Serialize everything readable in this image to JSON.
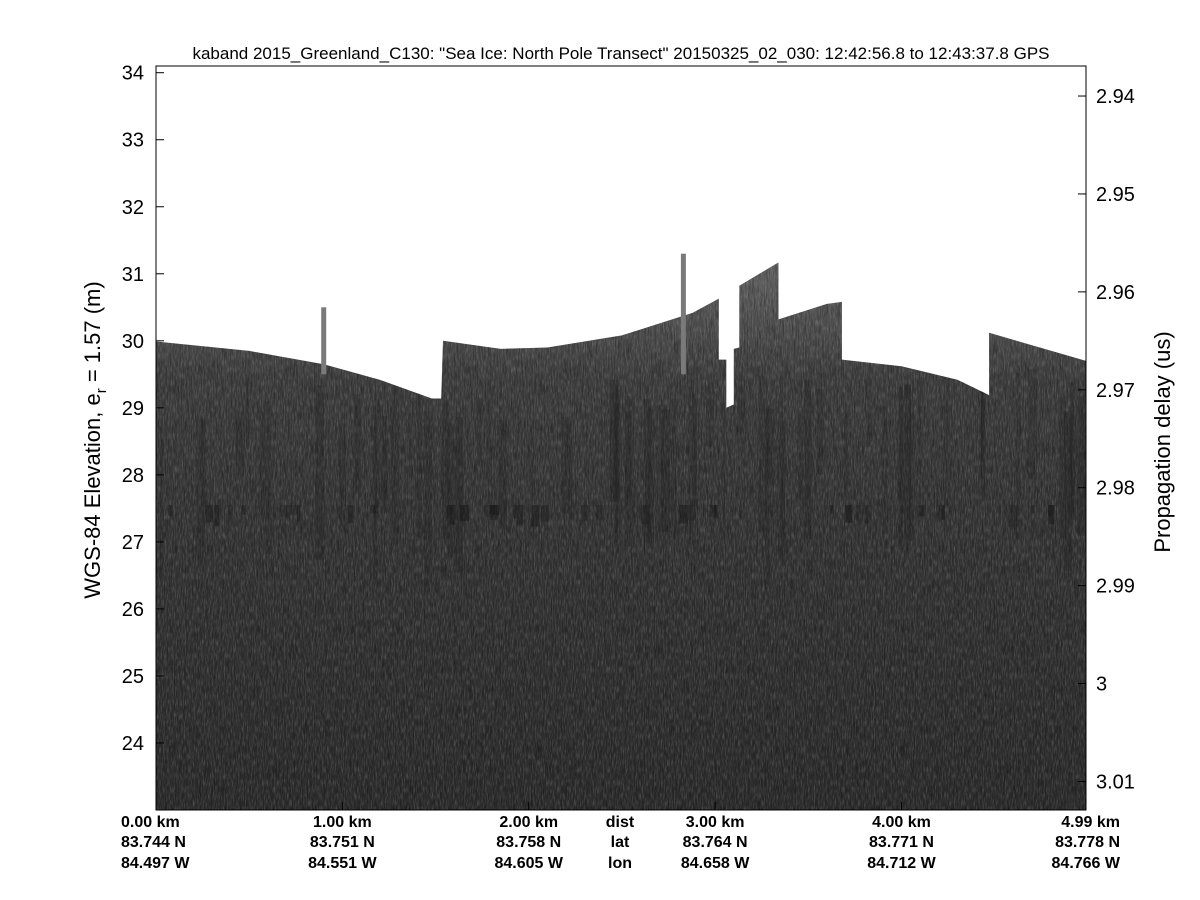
{
  "chart_data": {
    "type": "heatmap",
    "title": "kaband 2015_Greenland_C130: \"Sea Ice: North Pole Transect\"  20150325_02_030: 12:42:56.8 to 12:43:37.8 GPS",
    "ylabel": "WGS-84 Elevation, e_r = 1.57 (m)",
    "ylabel_main": "WGS-84 Elevation, e",
    "ylabel_sub": "r",
    "ylabel_tail": " = 1.57 (m)",
    "y2label": "Propagation delay (us)",
    "ylim": [
      23.0,
      34.1
    ],
    "yticks": [
      "24",
      "25",
      "26",
      "27",
      "28",
      "29",
      "30",
      "31",
      "32",
      "33",
      "34"
    ],
    "y2ticks": [
      {
        "value": 2.94,
        "label": "2.94"
      },
      {
        "value": 2.95,
        "label": "2.95"
      },
      {
        "value": 2.96,
        "label": "2.96"
      },
      {
        "value": 2.97,
        "label": "2.97"
      },
      {
        "value": 2.98,
        "label": "2.98"
      },
      {
        "value": 2.99,
        "label": "2.99"
      },
      {
        "value": 3.0,
        "label": "3"
      },
      {
        "value": 3.01,
        "label": "3.01"
      }
    ],
    "xlim_km": [
      0.0,
      4.99
    ],
    "row_labels": [
      "dist",
      "lat",
      "lon"
    ],
    "xticks": [
      {
        "km": 0.0,
        "dist": "0.00 km",
        "lat": "83.744 N",
        "lon": "84.497 W"
      },
      {
        "km": 1.0,
        "dist": "1.00 km",
        "lat": "83.751 N",
        "lon": "84.551 W"
      },
      {
        "km": 2.0,
        "dist": "2.00 km",
        "lat": "83.758 N",
        "lon": "84.605 W"
      },
      {
        "km": 3.0,
        "dist": "3.00 km",
        "lat": "83.764 N",
        "lon": "84.658 W"
      },
      {
        "km": 4.0,
        "dist": "4.00 km",
        "lat": "83.771 N",
        "lon": "84.712 W"
      },
      {
        "km": 4.99,
        "dist": "4.99 km",
        "lat": "83.778 N",
        "lon": "84.766 W"
      }
    ],
    "colormap": "gray",
    "surface_elevation_m": [
      [
        0.0,
        29.99
      ],
      [
        0.5,
        29.85
      ],
      [
        0.9,
        29.65
      ],
      [
        1.2,
        29.42
      ],
      [
        1.48,
        29.14
      ],
      [
        1.53,
        29.14
      ],
      [
        1.54,
        30.0
      ],
      [
        1.85,
        29.88
      ],
      [
        2.1,
        29.9
      ],
      [
        2.5,
        30.08
      ],
      [
        2.88,
        30.42
      ],
      [
        3.02,
        30.63
      ],
      [
        3.02,
        29.72
      ],
      [
        3.06,
        29.72
      ],
      [
        3.06,
        29.0
      ],
      [
        3.1,
        29.05
      ],
      [
        3.1,
        29.88
      ],
      [
        3.13,
        29.9
      ],
      [
        3.13,
        30.82
      ],
      [
        3.34,
        31.17
      ],
      [
        3.34,
        30.32
      ],
      [
        3.6,
        30.55
      ],
      [
        3.68,
        30.58
      ],
      [
        3.68,
        29.72
      ],
      [
        4.0,
        29.62
      ],
      [
        4.3,
        29.42
      ],
      [
        4.47,
        29.19
      ],
      [
        4.47,
        30.12
      ],
      [
        4.99,
        29.7
      ]
    ],
    "spikes": [
      {
        "km": 0.9,
        "top_m": 30.5
      },
      {
        "km": 2.83,
        "top_m": 31.3
      }
    ]
  }
}
